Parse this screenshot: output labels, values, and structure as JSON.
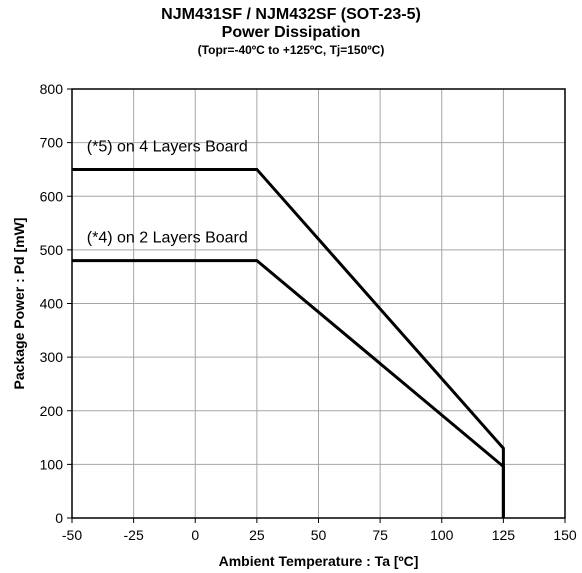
{
  "chart_data": {
    "type": "line",
    "title": "NJM431SF / NJM432SF (SOT-23-5)",
    "subtitle": "Power Dissipation",
    "condition": "(Topr=-40ºC to +125ºC, Tj=150ºC)",
    "xlabel": "Ambient Temperature : Ta [ºC]",
    "ylabel": "Package Power : Pd [mW]",
    "xlim": [
      -50,
      150
    ],
    "ylim": [
      0,
      800
    ],
    "xticks": [
      "-50",
      "-25",
      "0",
      "25",
      "50",
      "75",
      "100",
      "125",
      "150"
    ],
    "yticks": [
      "0",
      "100",
      "200",
      "300",
      "400",
      "500",
      "600",
      "700",
      "800"
    ],
    "grid": true,
    "series": [
      {
        "name": "(*5) on 4 Layers Board",
        "x": [
          -50,
          25,
          125,
          125
        ],
        "y": [
          650,
          650,
          130,
          0
        ]
      },
      {
        "name": "(*4) on 2 Layers Board",
        "x": [
          -50,
          25,
          125,
          125
        ],
        "y": [
          480,
          480,
          96,
          0
        ]
      }
    ]
  }
}
